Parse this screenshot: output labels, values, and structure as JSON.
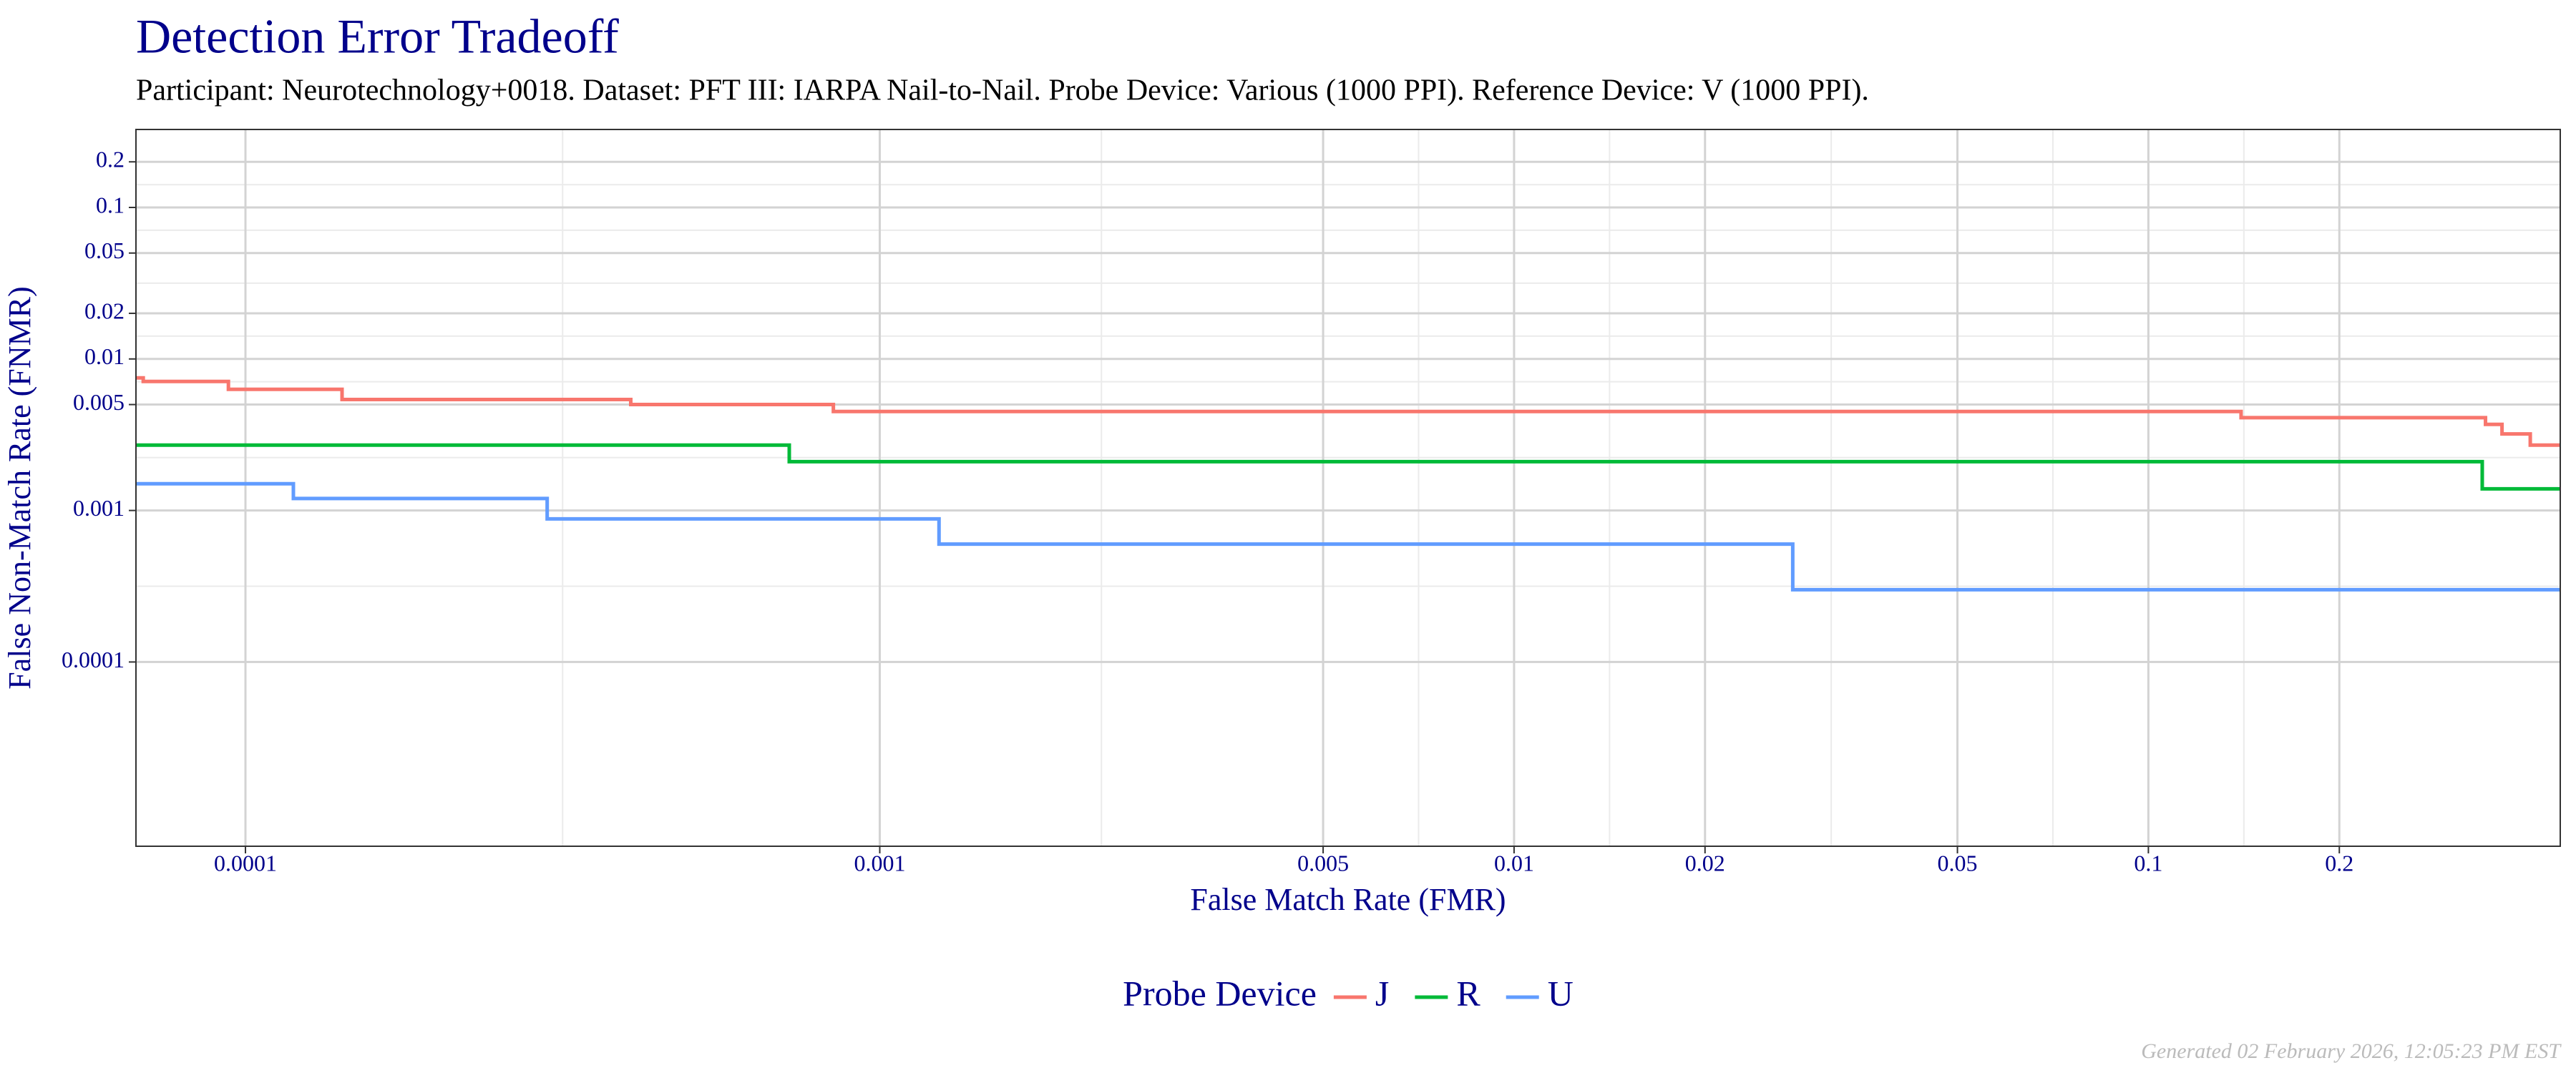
{
  "chart_data": {
    "type": "step",
    "title": "Detection Error Tradeoff",
    "subtitle": "Participant: Neurotechnology+0018. Dataset: PFT III: IARPA Nail-to-Nail. Probe Device: Various (1000 PPI). Reference Device: V (1000 PPI).",
    "x_label": "False Match Rate (FMR)",
    "y_label": "False Non-Match Rate (FNMR)",
    "x_log": true,
    "y_log": true,
    "grid": true,
    "xlim": [
      6.72e-05,
      0.446
    ],
    "ylim": [
      6.08e-06,
      0.327
    ],
    "xticks": [
      0.0001,
      0.001,
      0.005,
      0.01,
      0.02,
      0.05,
      0.1,
      0.2
    ],
    "yticks": [
      0.0001,
      0.001,
      0.005,
      0.01,
      0.02,
      0.05,
      0.1,
      0.2
    ],
    "legend_title": "Probe Device",
    "legend_position": "bottom",
    "series": [
      {
        "name": "J",
        "color": "#F8766D",
        "x": [
          6.72e-05,
          6.9e-05,
          9.4e-05,
          0.000142,
          0.000405,
          0.000845,
          0.14,
          0.34,
          0.361,
          0.4,
          0.446
        ],
        "values": [
          0.0075,
          0.0071,
          0.0063,
          0.0054,
          0.005,
          0.0045,
          0.0041,
          0.0037,
          0.0032,
          0.0027,
          0.0027
        ]
      },
      {
        "name": "R",
        "color": "#00BA38",
        "x": [
          6.72e-05,
          0.00072,
          0.336,
          0.446
        ],
        "values": [
          0.0027,
          0.0021,
          0.00139,
          0.00139
        ]
      },
      {
        "name": "U",
        "color": "#619CFF",
        "x": [
          6.72e-05,
          0.000119,
          0.000299,
          0.00124,
          0.0275,
          0.446
        ],
        "values": [
          0.0015,
          0.0012,
          0.00088,
          0.0006,
          0.0003,
          0.0003
        ]
      }
    ],
    "footer": "Generated 02 February 2026, 12:05:23 PM EST"
  }
}
